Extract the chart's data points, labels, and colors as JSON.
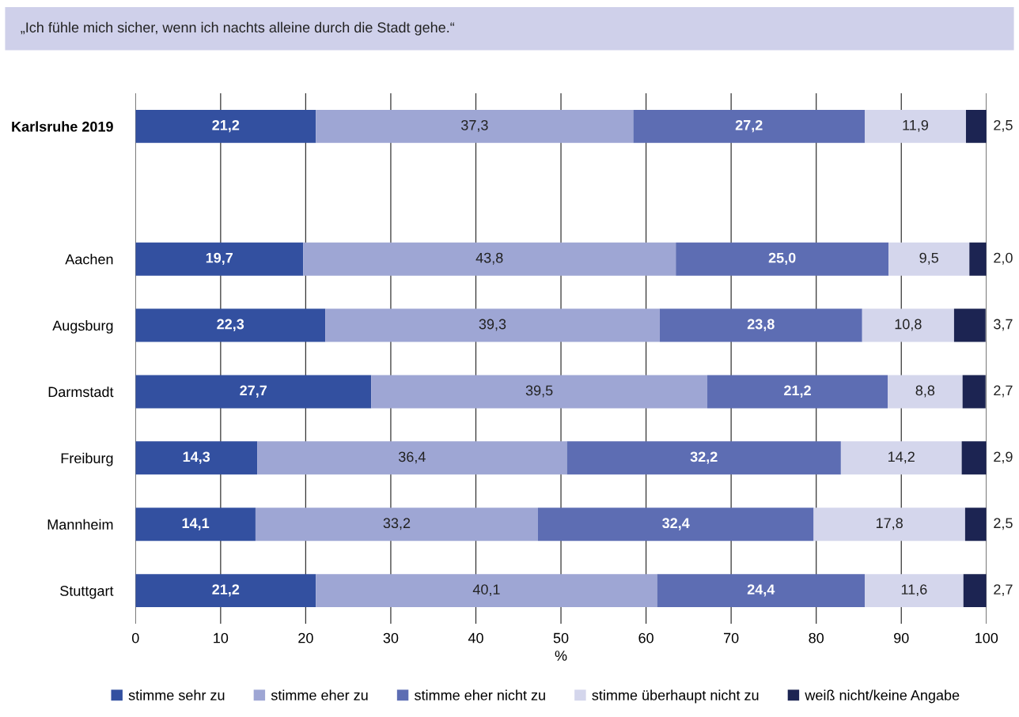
{
  "chart_data": {
    "type": "bar",
    "orientation": "horizontal",
    "stacked": true,
    "title": "„Ich fühle mich sicher, wenn ich nachts alleine durch die Stadt gehe.“",
    "xlabel": "%",
    "categories": [
      "Karlsruhe 2019",
      null,
      "Aachen",
      "Augsburg",
      "Darmstadt",
      "Freiburg",
      "Mannheim",
      "Stuttgart"
    ],
    "series": [
      {
        "name": "stimme sehr zu",
        "color": "#3350a0",
        "values": [
          21.2,
          null,
          19.7,
          22.3,
          27.7,
          14.3,
          14.1,
          21.2
        ],
        "value_labels": [
          "21,2",
          null,
          "19,7",
          "22,3",
          "27,7",
          "14,3",
          "14,1",
          "21,2"
        ]
      },
      {
        "name": "stimme eher zu",
        "color": "#9ea6d4",
        "values": [
          37.3,
          null,
          43.8,
          39.3,
          39.5,
          36.4,
          33.2,
          40.1
        ],
        "value_labels": [
          "37,3",
          null,
          "43,8",
          "39,3",
          "39,5",
          "36,4",
          "33,2",
          "40,1"
        ]
      },
      {
        "name": "stimme eher nicht zu",
        "color": "#5d6db3",
        "values": [
          27.2,
          null,
          25.0,
          23.8,
          21.2,
          32.2,
          32.4,
          24.4
        ],
        "value_labels": [
          "27,2",
          null,
          "25,0",
          "23,8",
          "21,2",
          "32,2",
          "32,4",
          "24,4"
        ]
      },
      {
        "name": "stimme überhaupt nicht zu",
        "color": "#d4d6ec",
        "values": [
          11.9,
          null,
          9.5,
          10.8,
          8.8,
          14.2,
          17.8,
          11.6
        ],
        "value_labels": [
          "11,9",
          null,
          "9,5",
          "10,8",
          "8,8",
          "14,2",
          "17,8",
          "11,6"
        ]
      },
      {
        "name": "weiß nicht/keine Angabe",
        "color": "#1c2452",
        "values": [
          2.5,
          null,
          2.0,
          3.7,
          2.7,
          2.9,
          2.5,
          2.7
        ],
        "value_labels": [
          "2,5",
          null,
          "2,0",
          "3,7",
          "2,7",
          "2,9",
          "2,5",
          "2,7"
        ]
      }
    ],
    "xlim": [
      0,
      100
    ],
    "xticks": [
      0,
      10,
      20,
      30,
      40,
      50,
      60,
      70,
      80,
      90,
      100
    ],
    "grid": "x",
    "legend": "bottom"
  }
}
